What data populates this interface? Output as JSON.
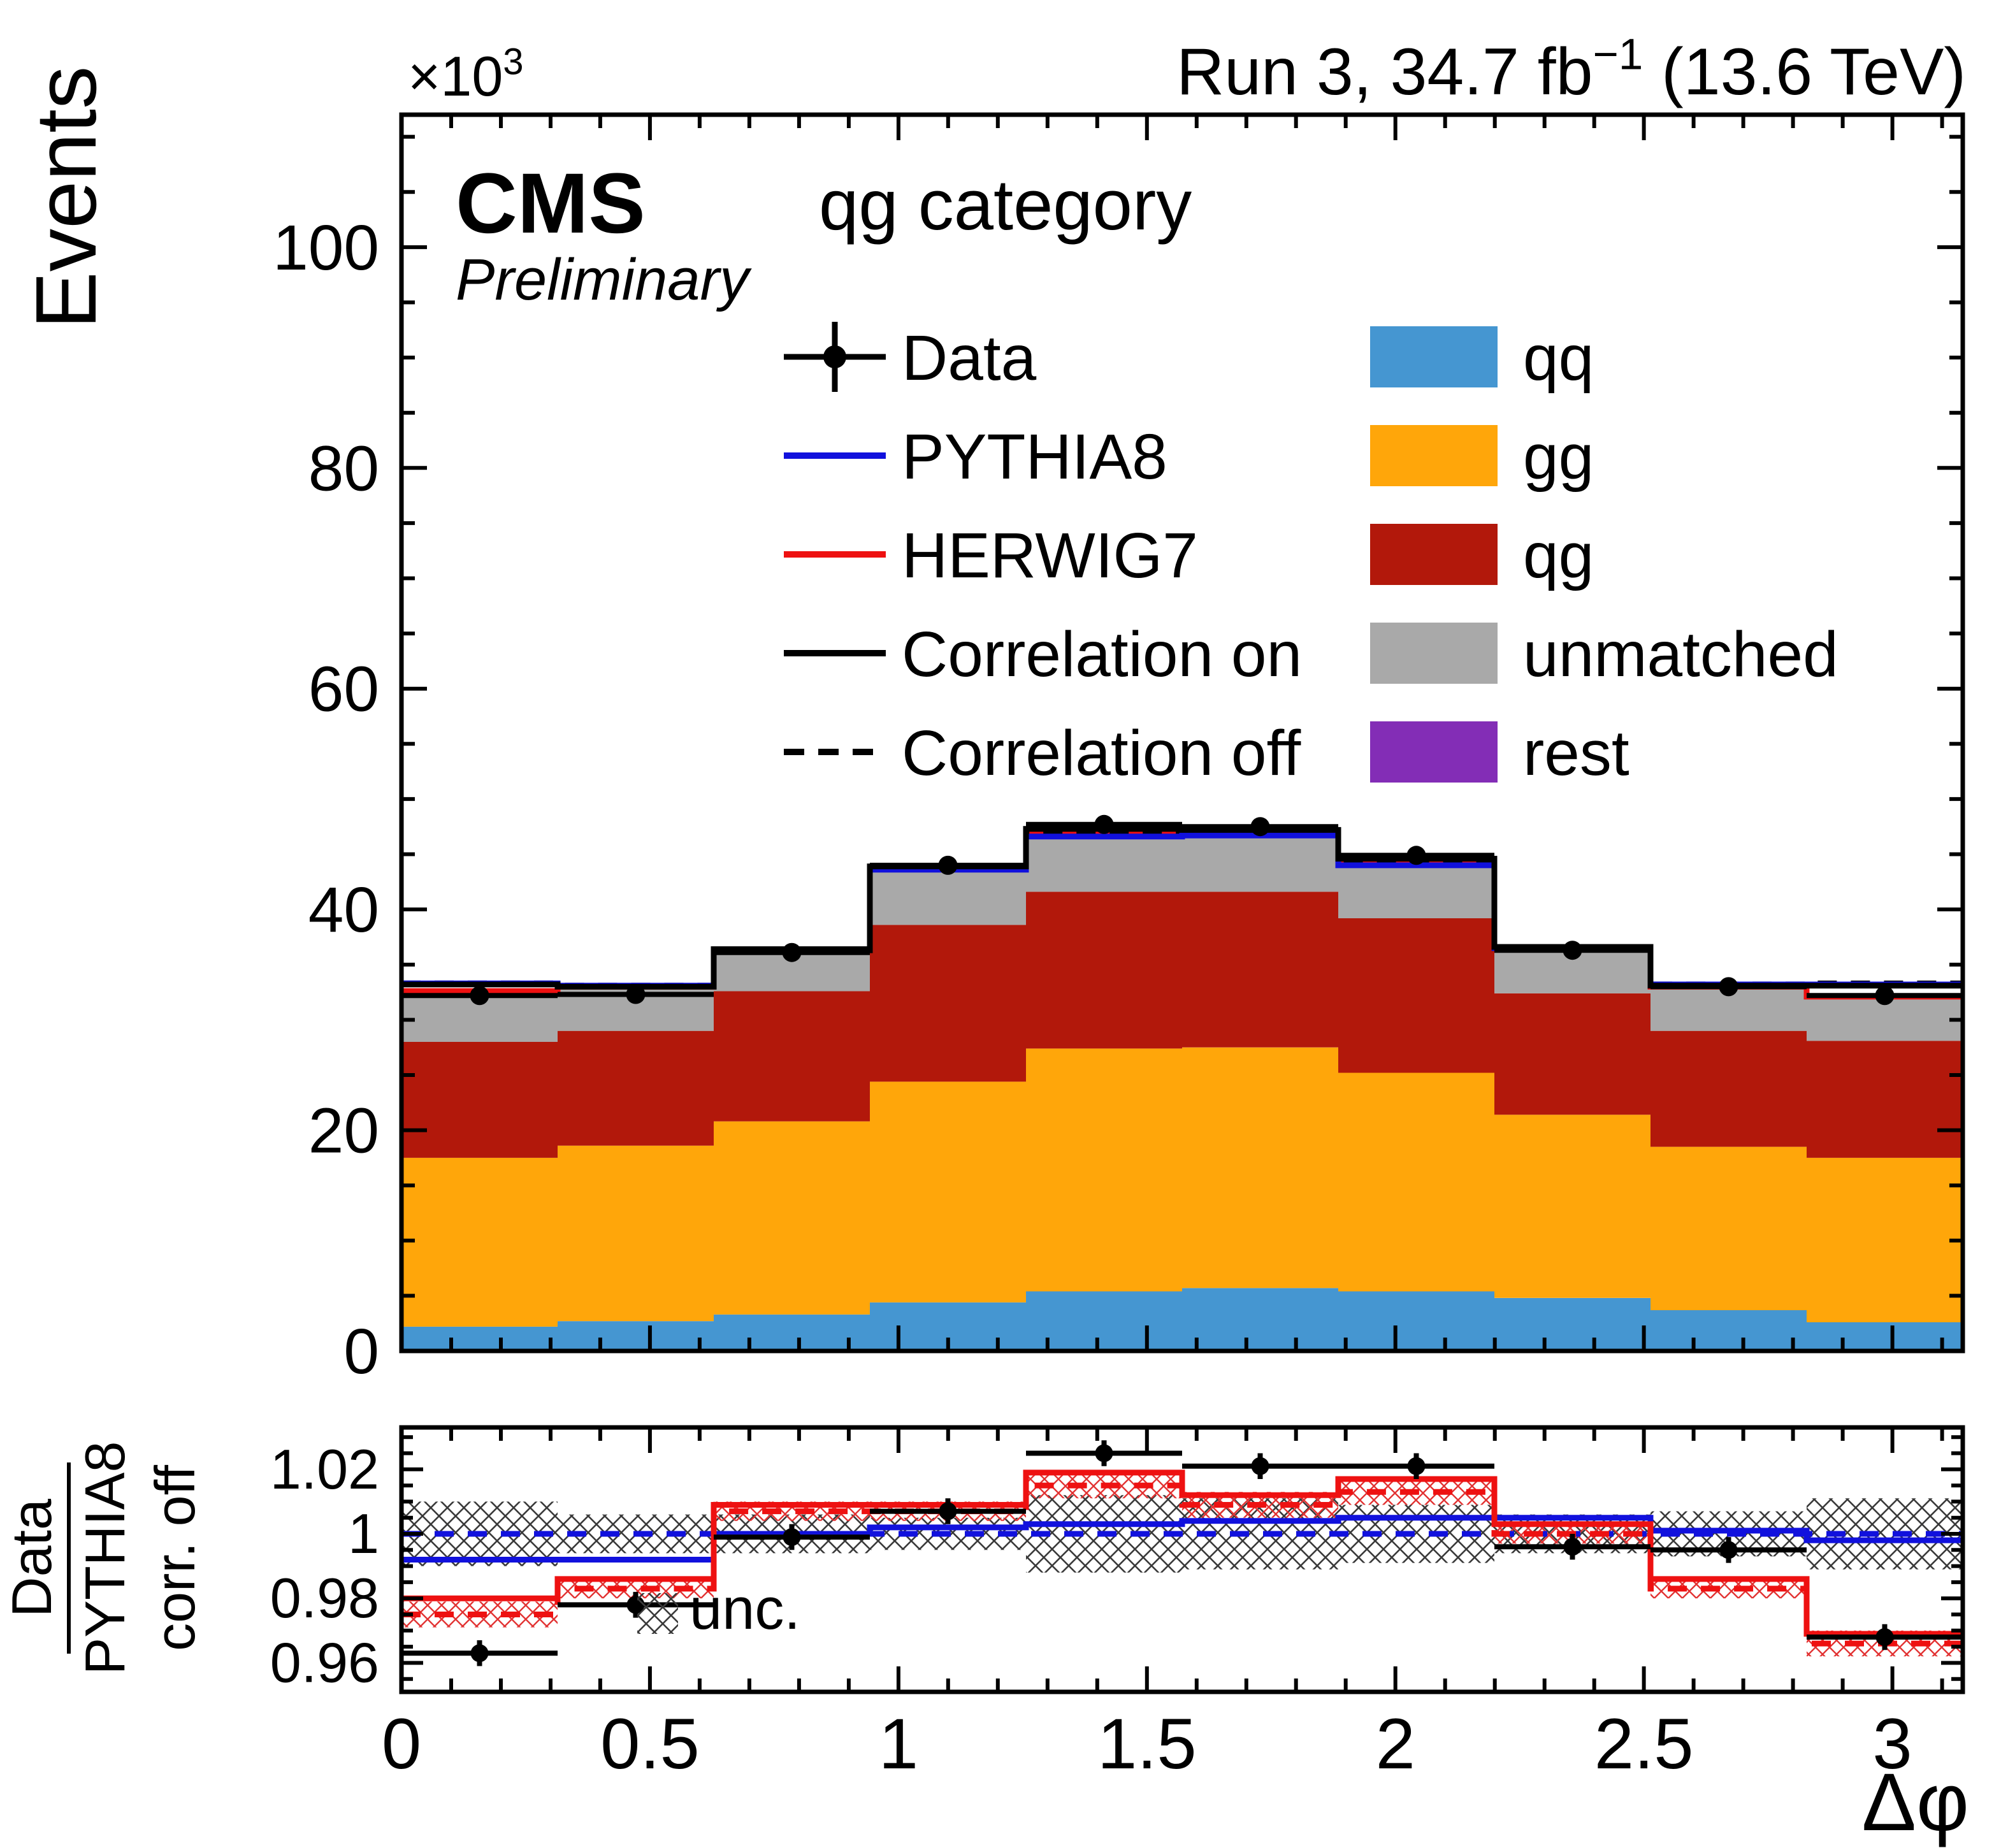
{
  "chart_data": {
    "type": "bar",
    "subtype": "stacked-histogram-with-ratio",
    "header": {
      "cms": "CMS",
      "preliminary": "Preliminary",
      "category": "qg category",
      "scale_segments": [
        {
          "t": "×10"
        },
        {
          "t": "3",
          "sup": true
        }
      ],
      "right_segments": [
        {
          "t": "Run 3, 34.7 fb"
        },
        {
          "t": "−1",
          "sup": true
        },
        {
          "t": " (13.6 TeV)"
        }
      ]
    },
    "x": {
      "label": "Δφ",
      "lim": [
        0,
        3.14159
      ],
      "major_ticks": [
        0,
        0.5,
        1,
        1.5,
        2,
        2.5,
        3
      ],
      "tick_labels": [
        "0",
        "0.5",
        "1",
        "1.5",
        "2",
        "2.5",
        "3"
      ],
      "minor_step": 0.1
    },
    "main": {
      "ylabel": "Events",
      "lim": [
        0,
        112
      ],
      "major_ticks": [
        0,
        20,
        40,
        60,
        80,
        100
      ],
      "tick_labels": [
        "0",
        "20",
        "40",
        "60",
        "80",
        "100"
      ],
      "minor_step": 5
    },
    "ratio": {
      "ylabel_num": "Data",
      "ylabel_den": "PYTHIA8",
      "ylabel_extra": "corr. off",
      "unc_label": "unc.",
      "lim": [
        0.951,
        1.033
      ],
      "major_ticks": [
        0.96,
        0.98,
        1.0,
        1.02
      ],
      "tick_labels": [
        "0.96",
        "0.98",
        "1",
        "1.02"
      ],
      "minor_step": 0.005
    },
    "bin_edges": [
      0,
      0.31416,
      0.62832,
      0.94248,
      1.25664,
      1.5708,
      1.88496,
      2.19911,
      2.51327,
      2.82743,
      3.14159
    ],
    "stack": [
      {
        "name": "qq",
        "color": "#4596d1",
        "values": [
          2.2,
          2.7,
          3.3,
          4.4,
          5.4,
          5.7,
          5.4,
          4.8,
          3.7,
          2.6
        ]
      },
      {
        "name": "gg",
        "color": "#ffa60a",
        "values": [
          15.3,
          15.9,
          17.5,
          20.0,
          22.0,
          21.8,
          19.8,
          16.6,
          14.8,
          14.9
        ]
      },
      {
        "name": "qg",
        "color": "#b2180b",
        "values": [
          10.5,
          10.4,
          11.8,
          14.2,
          14.2,
          14.1,
          14.0,
          11.0,
          10.5,
          10.6
        ]
      },
      {
        "name": "unmatched",
        "color": "#a9a9a9",
        "values": [
          4.5,
          3.9,
          3.6,
          5.0,
          5.1,
          5.1,
          4.9,
          4.1,
          3.9,
          3.9
        ]
      },
      {
        "name": "rest",
        "color": "#832db6",
        "values": [
          0.1,
          0.1,
          0.1,
          0.1,
          0.1,
          0.1,
          0.1,
          0.1,
          0.1,
          0.1
        ]
      }
    ],
    "lines": {
      "herwig7": {
        "label": "HERWIG7",
        "color": "#ee1111",
        "values": [
          32.6,
          33.0,
          36.3,
          43.7,
          46.8,
          46.8,
          44.2,
          36.6,
          33.0,
          32.1
        ]
      },
      "pythia8": {
        "label": "PYTHIA8",
        "color": "#1111dd",
        "values": [
          33.3,
          33.1,
          36.4,
          43.6,
          46.6,
          46.7,
          44.0,
          36.5,
          33.2,
          33.2
        ]
      },
      "corr_on": {
        "label": "Correlation on",
        "color": "#000000",
        "values": [
          33.2,
          33.0,
          36.4,
          43.9,
          47.3,
          47.2,
          44.6,
          36.6,
          33.1,
          33.1
        ]
      },
      "corr_off": {
        "label": "Correlation off",
        "color": "#000000",
        "dash": true,
        "values": [
          33.3,
          33.1,
          36.3,
          43.7,
          46.8,
          46.9,
          44.2,
          36.5,
          33.2,
          33.3
        ]
      }
    },
    "data_points": {
      "label": "Data",
      "values": [
        32.2,
        32.3,
        36.1,
        44.0,
        47.7,
        47.5,
        44.9,
        36.3,
        33.0,
        32.2
      ],
      "err": [
        0.18,
        0.18,
        0.19,
        0.21,
        0.22,
        0.22,
        0.21,
        0.19,
        0.18,
        0.18
      ]
    },
    "ratio_panel": {
      "band_center": 1.0,
      "band_halfwidth": [
        0.01,
        0.006,
        0.006,
        0.005,
        0.012,
        0.011,
        0.009,
        0.006,
        0.007,
        0.011
      ],
      "red_band_halfwidth": [
        0.004,
        0.003,
        0.003,
        0.003,
        0.004,
        0.004,
        0.004,
        0.003,
        0.003,
        0.004
      ],
      "blue_solid": [
        0.992,
        0.992,
        1.0,
        1.002,
        1.003,
        1.004,
        1.005,
        1.005,
        1.001,
        0.998
      ],
      "blue_dashed_value": 1.0,
      "red_solid": [
        0.98,
        0.986,
        1.009,
        1.009,
        1.019,
        1.012,
        1.017,
        1.003,
        0.986,
        0.969
      ],
      "red_dashed": [
        0.975,
        0.983,
        1.007,
        1.007,
        1.015,
        1.009,
        1.013,
        1.0,
        0.983,
        0.966
      ],
      "points": [
        0.963,
        0.978,
        0.999,
        1.007,
        1.025,
        1.021,
        1.021,
        0.996,
        0.995,
        0.968
      ],
      "point_err": [
        0.004,
        0.004,
        0.004,
        0.004,
        0.004,
        0.004,
        0.004,
        0.004,
        0.004,
        0.004
      ]
    },
    "legend": {
      "left": [
        {
          "label": "Data",
          "type": "marker",
          "color": "#000000"
        },
        {
          "label": "PYTHIA8",
          "type": "line",
          "color": "#1111dd",
          "dash": false
        },
        {
          "label": "HERWIG7",
          "type": "line",
          "color": "#ee1111",
          "dash": false
        },
        {
          "label": "Correlation on",
          "type": "line",
          "color": "#000000",
          "dash": false
        },
        {
          "label": "Correlation off",
          "type": "line",
          "color": "#000000",
          "dash": true
        }
      ],
      "right": [
        {
          "label": "qq",
          "color": "#4596d1"
        },
        {
          "label": "gg",
          "color": "#ffa60a"
        },
        {
          "label": "qg",
          "color": "#b2180b"
        },
        {
          "label": "unmatched",
          "color": "#a9a9a9"
        },
        {
          "label": "rest",
          "color": "#832db6"
        }
      ]
    }
  }
}
